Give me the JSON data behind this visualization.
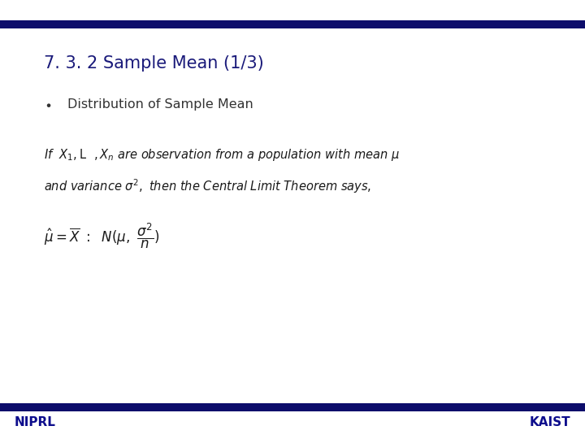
{
  "title": "7. 3. 2 Sample Mean (1/3)",
  "bullet_label": "Distribution of Sample Mean",
  "niprl_text": "NIPRL",
  "kaist_text": "KAIST",
  "bar_color": "#0d0d6b",
  "title_color": "#1a1a7a",
  "bullet_color": "#333333",
  "body_color": "#1a1a1a",
  "niprl_color": "#0d0d8c",
  "kaist_color": "#0d0d8c",
  "bg_color": "#ffffff",
  "title_fontsize": 15,
  "bullet_fontsize": 11.5,
  "body_fontsize": 10.5,
  "formula_fontsize": 12,
  "footer_fontsize": 11
}
